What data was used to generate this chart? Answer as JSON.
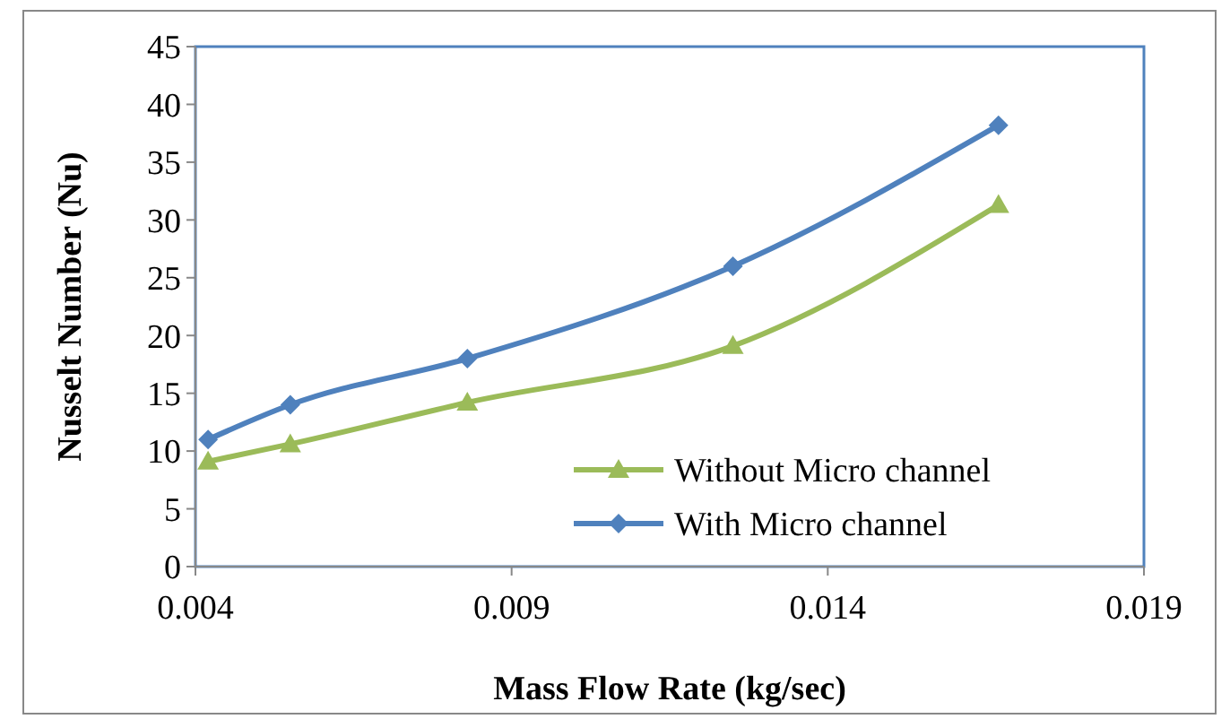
{
  "chart_data": {
    "type": "line",
    "xlabel": "Mass Flow Rate (kg/sec)",
    "ylabel": "Nusselt Number (Nu)",
    "x": [
      0.0042,
      0.0055,
      0.0083,
      0.0125,
      0.0167
    ],
    "series": [
      {
        "name": "Without Micro channel",
        "color": "#9bbb59",
        "marker": "triangle",
        "values": [
          9.1,
          10.6,
          14.2,
          19.1,
          31.3
        ]
      },
      {
        "name": "With Micro channel",
        "color": "#4f81bd",
        "marker": "diamond",
        "values": [
          11,
          14,
          18,
          26,
          38.2
        ]
      }
    ],
    "xlim": [
      0.004,
      0.019
    ],
    "xticks": [
      0.004,
      0.009,
      0.014,
      0.019
    ],
    "ylim": [
      0,
      45
    ],
    "yticks": [
      0,
      5,
      10,
      15,
      20,
      25,
      30,
      35,
      40,
      45
    ],
    "grid": false,
    "legend": "bottom right",
    "line_style": "solid"
  }
}
